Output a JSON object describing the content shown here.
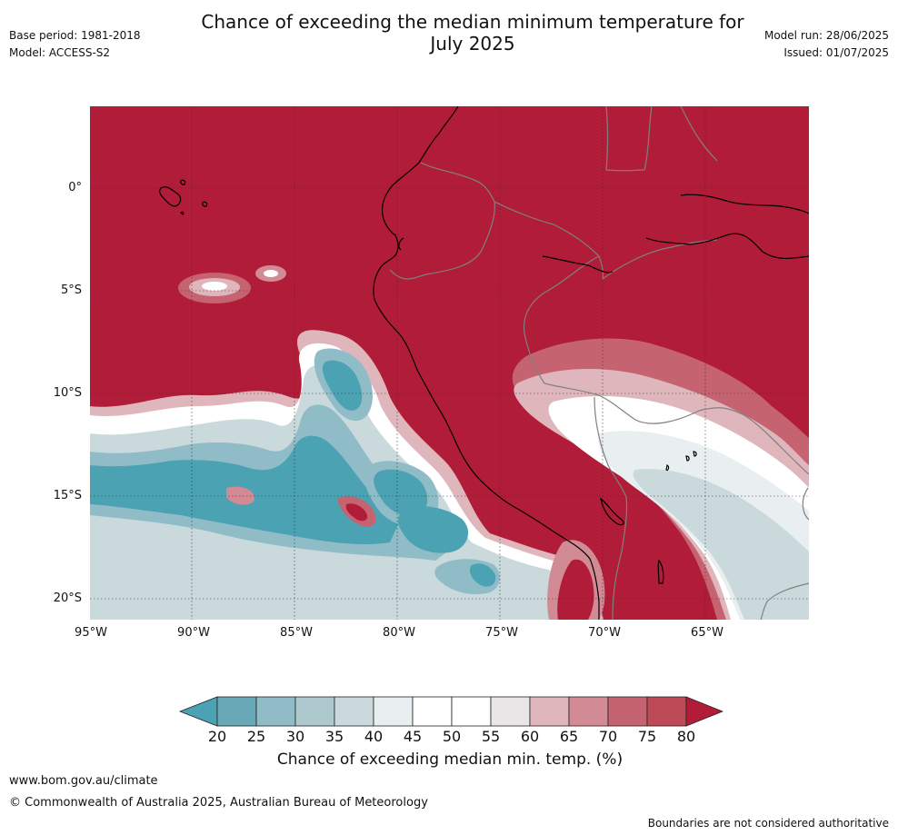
{
  "header": {
    "title_line1": "Chance of exceeding the median minimum temperature for",
    "title_line2": "July 2025",
    "base_period": "Base period: 1981-2018",
    "model": "Model: ACCESS-S2",
    "model_run": "Model run: 28/06/2025",
    "issued": "Issued: 01/07/2025"
  },
  "map": {
    "lat_ticks": [
      "0°",
      "5°S",
      "10°S",
      "15°S",
      "20°S"
    ],
    "lon_ticks": [
      "95°W",
      "90°W",
      "85°W",
      "80°W",
      "75°W",
      "70°W",
      "65°W"
    ],
    "colors": {
      "high": "#b11c38",
      "blue_dark": "#4ba2b3",
      "blue_mid": "#8fbcc6",
      "grey_blue": "#c9d9dc",
      "white": "#ffffff",
      "pink_light": "#e0b6bd",
      "pink_mid": "#d28a95",
      "red_light": "#c2505e",
      "coast": "#000000",
      "border": "#808080",
      "grid": "#333333"
    }
  },
  "colorbar": {
    "ticks": [
      "20",
      "25",
      "30",
      "35",
      "40",
      "45",
      "50",
      "55",
      "60",
      "65",
      "70",
      "75",
      "80"
    ],
    "colors": [
      "#4ba2b3",
      "#69a9b7",
      "#8fbcc6",
      "#adc9ce",
      "#c9d9dc",
      "#e9eff1",
      "#ffffff",
      "#ffffff",
      "#e8e6e6",
      "#e0b6bd",
      "#d28a95",
      "#c56470",
      "#be4a57",
      "#b11c38"
    ],
    "label": "Chance of exceeding median min. temp. (%)"
  },
  "footer": {
    "website": "www.bom.gov.au/climate",
    "copyright": "© Commonwealth of Australia 2025, Australian Bureau of Meteorology",
    "disclaimer": "Boundaries are not considered authoritative"
  }
}
